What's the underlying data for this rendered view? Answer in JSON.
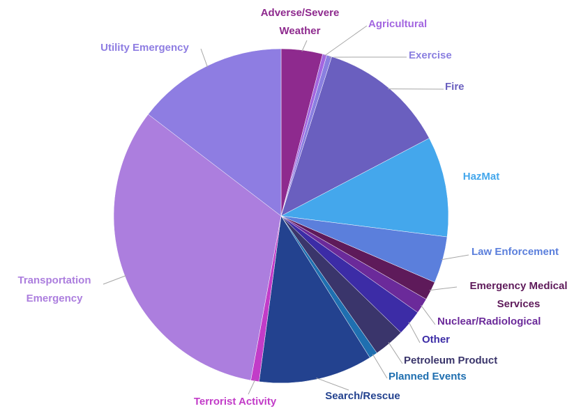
{
  "chart_data": {
    "type": "pie",
    "categories": [
      "Adverse/Severe Weather",
      "Agricultural",
      "Exercise",
      "Fire",
      "HazMat",
      "Law Enforcement",
      "Emergency Medical Services",
      "Nuclear/Radiological",
      "Other",
      "Petroleum Product",
      "Planned Events",
      "Search/Rescue",
      "Terrorist Activity",
      "Transportation Emergency",
      "Utility Emergency"
    ],
    "values": [
      4,
      0.4,
      0.5,
      12.4,
      9.7,
      4.5,
      1.8,
      1.5,
      2.5,
      3,
      0.8,
      11,
      0.8,
      32.5,
      14.6
    ],
    "colors": [
      "#8e2a8e",
      "#a366e0",
      "#8a7fe0",
      "#6a5fbf",
      "#44a7ec",
      "#5b7fdc",
      "#5e1a5a",
      "#6b2a9a",
      "#3c2ca6",
      "#3a356b",
      "#1f6fb0",
      "#23428f",
      "#c23cc8",
      "#ac7ede",
      "#8e7de2"
    ]
  }
}
